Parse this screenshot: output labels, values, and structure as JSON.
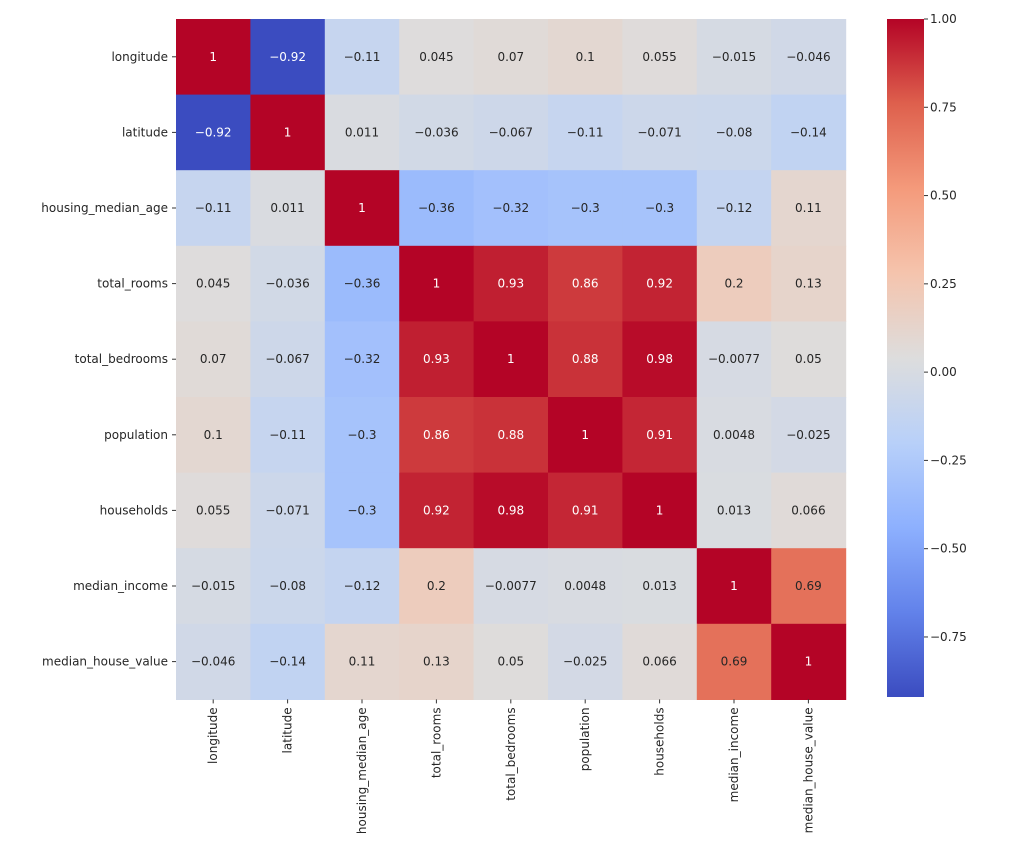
{
  "chart_data": {
    "type": "heatmap",
    "title": "",
    "xlabel": "",
    "ylabel": "",
    "variables": [
      "longitude",
      "latitude",
      "housing_median_age",
      "total_rooms",
      "total_bedrooms",
      "population",
      "households",
      "median_income",
      "median_house_value"
    ],
    "values": [
      [
        1,
        -0.92,
        -0.11,
        0.045,
        0.07,
        0.1,
        0.055,
        -0.015,
        -0.046
      ],
      [
        -0.92,
        1,
        0.011,
        -0.036,
        -0.067,
        -0.11,
        -0.071,
        -0.08,
        -0.14
      ],
      [
        -0.11,
        0.011,
        1,
        -0.36,
        -0.32,
        -0.3,
        -0.3,
        -0.12,
        0.11
      ],
      [
        0.045,
        -0.036,
        -0.36,
        1,
        0.93,
        0.86,
        0.92,
        0.2,
        0.13
      ],
      [
        0.07,
        -0.067,
        -0.32,
        0.93,
        1,
        0.88,
        0.98,
        -0.0077,
        0.05
      ],
      [
        0.1,
        -0.11,
        -0.3,
        0.86,
        0.88,
        1,
        0.91,
        0.0048,
        -0.025
      ],
      [
        0.055,
        -0.071,
        -0.3,
        0.92,
        0.98,
        0.91,
        1,
        0.013,
        0.066
      ],
      [
        -0.015,
        -0.08,
        -0.12,
        0.2,
        -0.0077,
        0.0048,
        0.013,
        1,
        0.69
      ],
      [
        -0.046,
        -0.14,
        0.11,
        0.13,
        0.05,
        -0.025,
        0.066,
        0.69,
        1
      ]
    ],
    "colormap": "coolwarm",
    "vmin": -0.92,
    "vmax": 1.0,
    "colorbar": {
      "ticks": [
        -0.75,
        -0.5,
        -0.25,
        0.0,
        0.25,
        0.5,
        0.75,
        1.0
      ],
      "tick_labels": [
        "−0.75",
        "−0.50",
        "−0.25",
        "0.00",
        "0.25",
        "0.50",
        "0.75",
        "1.00"
      ],
      "placement": "right"
    },
    "annotations": true,
    "grid": false
  }
}
